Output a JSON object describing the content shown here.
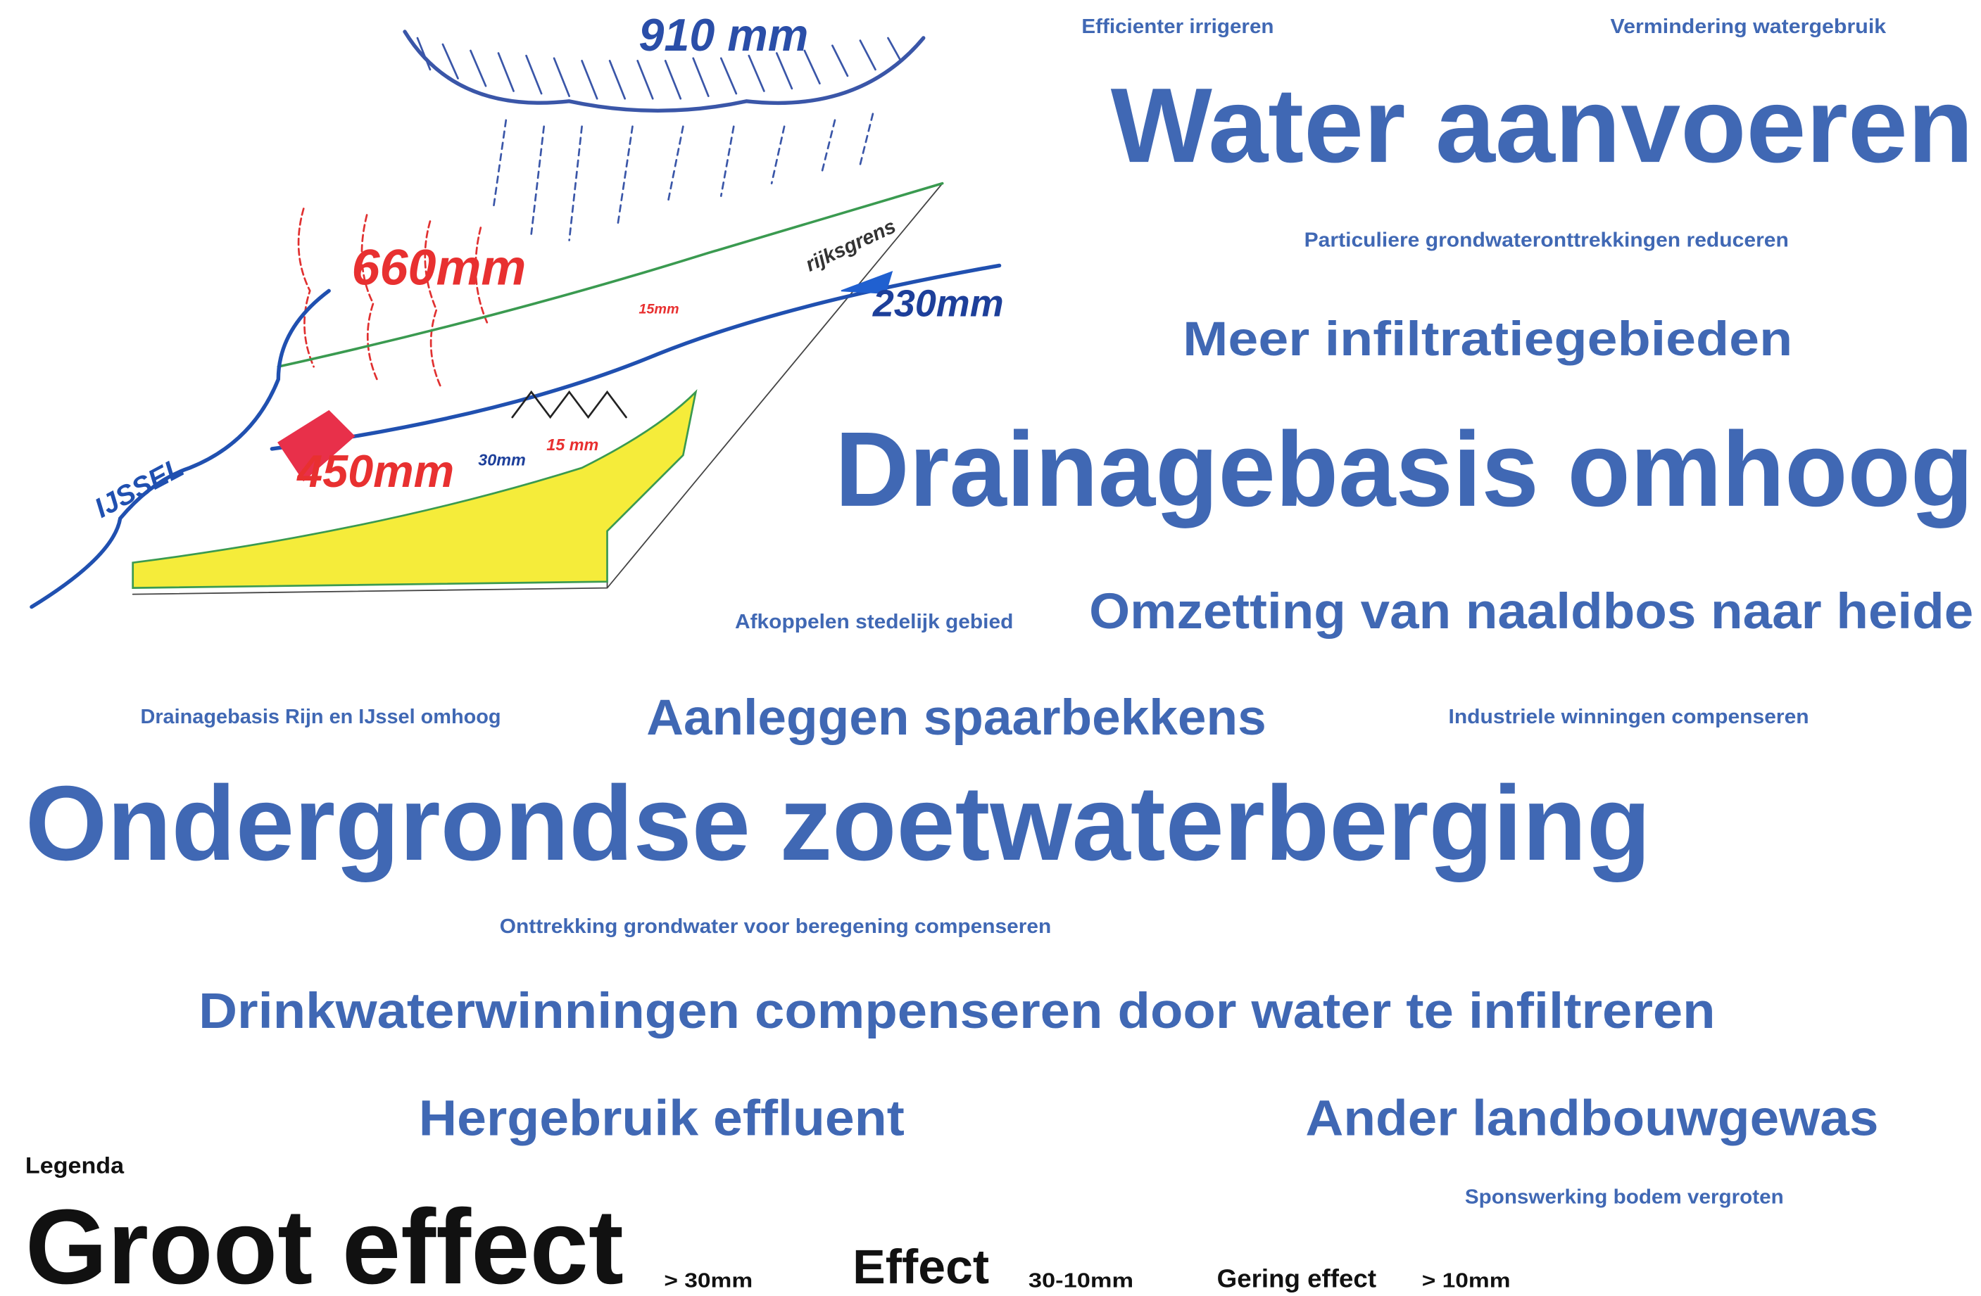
{
  "sketch": {
    "labels": [
      "910 mm",
      "660mm",
      "230mm",
      "450mm",
      "30mm",
      "15 mm",
      "15mm",
      "IJSSEL",
      "rijksgrens"
    ]
  },
  "word_cloud": {
    "items": [
      "Efficienter irrigeren",
      "Vermindering watergebruik",
      "Water aanvoeren",
      "Particuliere grondwateronttrekkingen reduceren",
      "Meer infiltratiegebieden",
      "Drainagebasis omhoog",
      "Afkoppelen stedelijk gebied",
      "Omzetting van naaldbos naar heide",
      "Drainagebasis Rijn en IJssel omhoog",
      "Aanleggen spaarbekkens",
      "Industriele winningen compenseren",
      "Ondergrondse zoetwaterberging",
      "Onttrekking grondwater voor beregening compenseren",
      "Drinkwaterwinningen compenseren door water te infiltreren",
      "Hergebruik effluent",
      "Ander landbouwgewas",
      "Sponswerking bodem vergroten"
    ]
  },
  "legend": {
    "title": "Legenda",
    "items": [
      {
        "label": "Groot effect",
        "range": "> 30mm"
      },
      {
        "label": "Effect",
        "range": "30-10mm"
      },
      {
        "label": "Gering effect",
        "range": "> 10mm"
      }
    ]
  }
}
